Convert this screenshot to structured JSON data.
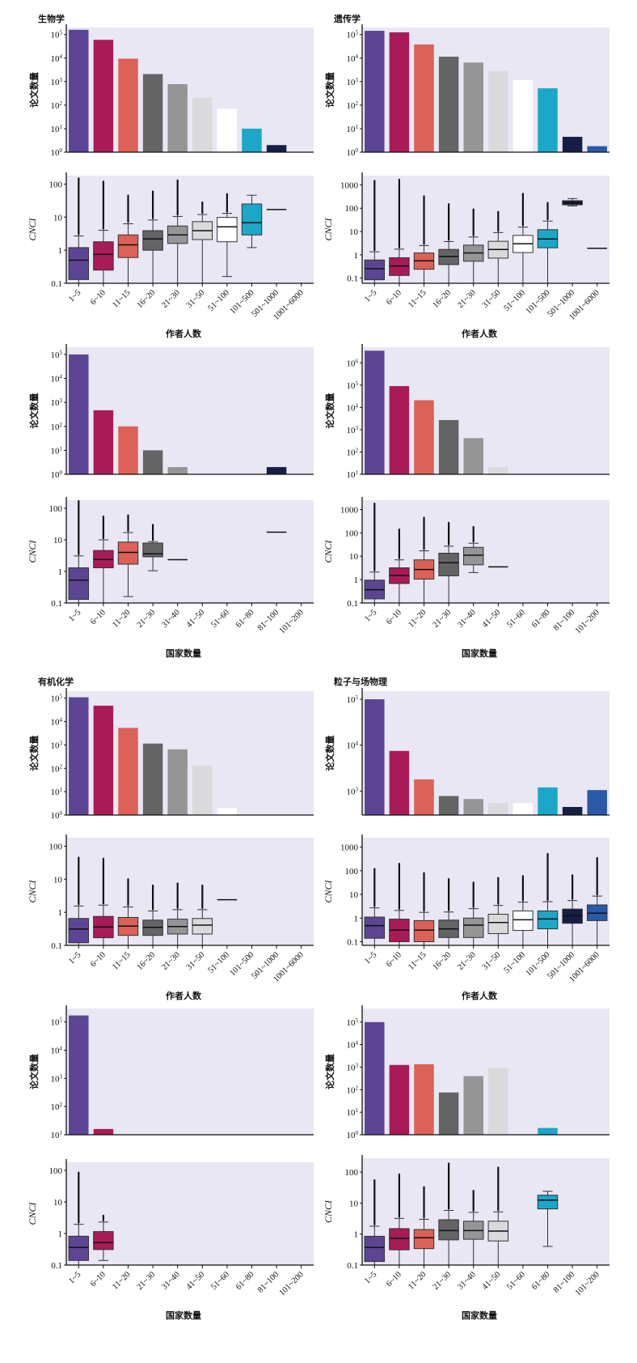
{
  "palette": [
    "#5c4595",
    "#a91b56",
    "#dc6156",
    "#646464",
    "#959595",
    "#d9dadb",
    "#ffffff",
    "#1ba7c8",
    "#151e45",
    "#2a59a8"
  ],
  "figure": {
    "background": "#e9e7f4"
  },
  "chart_data": [
    {
      "id": "biology-authors-count",
      "type": "bar",
      "title": "生物学",
      "ylabel": "论文数量",
      "yscale": "log",
      "ylim": [
        1,
        200000
      ],
      "yticks": [
        "10⁰",
        "10¹",
        "10²",
        "10³",
        "10⁴",
        "10⁵"
      ],
      "categories": [
        "1~5",
        "6~10",
        "11~15",
        "16~20",
        "21~30",
        "31~50",
        "51~100",
        "101~500",
        "501~1000",
        "1001~6000"
      ],
      "values": [
        160000,
        60000,
        9500,
        2100,
        780,
        210,
        70,
        10,
        2,
        null
      ]
    },
    {
      "id": "biology-authors-cnci",
      "type": "box",
      "ylabel": "CNCI",
      "xlabel": "作者人数",
      "yscale": "log",
      "ylim": [
        0.1,
        180
      ],
      "yticks": [
        "0.1",
        "1",
        "10",
        "100"
      ],
      "categories": [
        "1~5",
        "6~10",
        "11~15",
        "16~20",
        "21~30",
        "31~50",
        "51~100",
        "101~500",
        "501~1000",
        "1001~6000"
      ],
      "boxes": [
        {
          "q1": 0.13,
          "median": 0.5,
          "q3": 1.2,
          "wlo": 0.1,
          "whi": 2.7,
          "fmax": 150
        },
        {
          "q1": 0.25,
          "median": 0.75,
          "q3": 1.8,
          "wlo": 0.1,
          "whi": 4,
          "fmax": 120
        },
        {
          "q1": 0.6,
          "median": 1.45,
          "q3": 2.9,
          "wlo": 0.1,
          "whi": 6.3,
          "fmax": 45
        },
        {
          "q1": 1.0,
          "median": 2.2,
          "q3": 3.9,
          "wlo": 0.1,
          "whi": 8.2,
          "fmax": 60
        },
        {
          "q1": 1.6,
          "median": 2.9,
          "q3": 5.4,
          "wlo": 0.1,
          "whi": 10.5,
          "fmax": 130
        },
        {
          "q1": 2.1,
          "median": 3.9,
          "q3": 7.3,
          "wlo": 0.1,
          "whi": 12,
          "fmax": 28
        },
        {
          "q1": 1.8,
          "median": 5.1,
          "q3": 9.8,
          "wlo": 0.16,
          "whi": 13,
          "fmax": 50
        },
        {
          "q1": 2.9,
          "median": 6.8,
          "q3": 25,
          "wlo": 1.2,
          "whi": 46,
          "fmax": null
        },
        {
          "line": 17
        },
        null
      ]
    },
    {
      "id": "genetics-authors-count",
      "type": "bar",
      "title": "遗传学",
      "ylabel": "论文数量",
      "yscale": "log",
      "ylim": [
        1,
        200000
      ],
      "yticks": [
        "10⁰",
        "10¹",
        "10²",
        "10³",
        "10⁴",
        "10⁵"
      ],
      "categories": [
        "1~5",
        "6~10",
        "11~15",
        "16~20",
        "21~30",
        "31~50",
        "51~100",
        "101~500",
        "501~1000",
        "1001~6000"
      ],
      "values": [
        145000,
        125000,
        38000,
        11500,
        6500,
        2800,
        1150,
        520,
        4.5,
        1.8
      ]
    },
    {
      "id": "genetics-authors-cnci",
      "type": "box",
      "ylabel": "CNCI",
      "xlabel": "作者人数",
      "yscale": "log",
      "ylim": [
        0.06,
        2500
      ],
      "yticks": [
        "0.1",
        "1",
        "10",
        "100",
        "1000"
      ],
      "categories": [
        "1~5",
        "6~10",
        "11~15",
        "16~20",
        "21~30",
        "31~50",
        "51~100",
        "101~500",
        "501~1000",
        "1001~6000"
      ],
      "boxes": [
        {
          "q1": 0.085,
          "median": 0.25,
          "q3": 0.6,
          "wlo": 0.06,
          "whi": 1.35,
          "fmax": 1500
        },
        {
          "q1": 0.13,
          "median": 0.33,
          "q3": 0.75,
          "wlo": 0.06,
          "whi": 1.75,
          "fmax": 1700
        },
        {
          "q1": 0.24,
          "median": 0.55,
          "q3": 1.2,
          "wlo": 0.06,
          "whi": 2.5,
          "fmax": 330
        },
        {
          "q1": 0.38,
          "median": 0.85,
          "q3": 1.7,
          "wlo": 0.06,
          "whi": 3.7,
          "fmax": 150
        },
        {
          "q1": 0.53,
          "median": 1.2,
          "q3": 2.6,
          "wlo": 0.06,
          "whi": 5.8,
          "fmax": 90
        },
        {
          "q1": 0.72,
          "median": 1.7,
          "q3": 3.8,
          "wlo": 0.06,
          "whi": 9,
          "fmax": 70
        },
        {
          "q1": 1.25,
          "median": 3.0,
          "q3": 6.8,
          "wlo": 0.06,
          "whi": 15.5,
          "fmax": 420
        },
        {
          "q1": 2.0,
          "median": 4.8,
          "q3": 12,
          "wlo": 0.06,
          "whi": 28,
          "fmax": 170
        },
        {
          "q1": 140,
          "median": 170,
          "q3": 210,
          "wlo": 125,
          "whi": 260,
          "fmax": null
        },
        {
          "line": 1.9
        }
      ]
    },
    {
      "id": "biology-countries-count",
      "type": "bar",
      "ylabel": "论文数量",
      "yscale": "log",
      "ylim": [
        1,
        200000
      ],
      "yticks": [
        "10⁰",
        "10¹",
        "10²",
        "10³",
        "10⁴",
        "10⁵"
      ],
      "categories": [
        "1~5",
        "6~10",
        "11~20",
        "21~30",
        "31~40",
        "41~50",
        "51~60",
        "61~80",
        "81~100",
        "101~200"
      ],
      "values": [
        100000,
        470,
        100,
        10,
        2,
        null,
        null,
        null,
        2,
        null
      ]
    },
    {
      "id": "biology-countries-cnci",
      "type": "box",
      "ylabel": "CNCI",
      "xlabel": "国家数量",
      "yscale": "log",
      "ylim": [
        0.1,
        180
      ],
      "yticks": [
        "0.1",
        "1",
        "10",
        "100"
      ],
      "categories": [
        "1~5",
        "6~10",
        "11~20",
        "21~30",
        "31~40",
        "41~50",
        "51~60",
        "61~80",
        "81~100",
        "101~200"
      ],
      "boxes": [
        {
          "q1": 0.13,
          "median": 0.53,
          "q3": 1.3,
          "wlo": 0.1,
          "whi": 3.1,
          "fmax": 170
        },
        {
          "q1": 1.3,
          "median": 2.4,
          "q3": 4.6,
          "wlo": 0.1,
          "whi": 10,
          "fmax": 55
        },
        {
          "q1": 1.7,
          "median": 4.0,
          "q3": 8.5,
          "wlo": 0.16,
          "whi": 17,
          "fmax": 60
        },
        {
          "q1": 2.9,
          "median": 3.6,
          "q3": 7.9,
          "wlo": 1.05,
          "whi": 8.8,
          "fmax": 30
        },
        {
          "line": 2.35
        },
        null,
        null,
        null,
        {
          "line": 17.5
        },
        null
      ]
    },
    {
      "id": "genetics-countries-count",
      "type": "bar",
      "ylabel": "论文数量",
      "yscale": "log",
      "ylim": [
        10,
        5000000
      ],
      "yticks": [
        "10¹",
        "10²",
        "10³",
        "10⁴",
        "10⁵",
        "10⁶"
      ],
      "categories": [
        "1~5",
        "6~10",
        "11~20",
        "21~30",
        "31~40",
        "41~50",
        "51~60",
        "61~80",
        "81~100",
        "101~200"
      ],
      "values": [
        3500000,
        90000,
        21000,
        2700,
        420,
        21,
        null,
        null,
        null,
        null
      ]
    },
    {
      "id": "genetics-countries-cnci",
      "type": "box",
      "ylabel": "CNCI",
      "xlabel": "国家数量",
      "yscale": "log",
      "ylim": [
        0.1,
        2500
      ],
      "yticks": [
        "0.1",
        "1",
        "10",
        "100",
        "1000"
      ],
      "categories": [
        "1~5",
        "6~10",
        "11~20",
        "21~30",
        "31~40",
        "41~50",
        "51~60",
        "61~80",
        "81~100",
        "101~200"
      ],
      "boxes": [
        {
          "q1": 0.15,
          "median": 0.37,
          "q3": 0.95,
          "wlo": 0.1,
          "whi": 2.1,
          "fmax": 1800
        },
        {
          "q1": 0.68,
          "median": 1.5,
          "q3": 3.2,
          "wlo": 0.1,
          "whi": 7,
          "fmax": 140
        },
        {
          "q1": 1.05,
          "median": 2.7,
          "q3": 7,
          "wlo": 0.1,
          "whi": 17,
          "fmax": 450
        },
        {
          "q1": 1.45,
          "median": 5.3,
          "q3": 13.5,
          "wlo": 0.1,
          "whi": 27,
          "fmax": 270
        },
        {
          "q1": 4.3,
          "median": 11,
          "q3": 24,
          "wlo": 2.0,
          "whi": 36,
          "fmax": 180
        },
        {
          "line": 3.5
        },
        null,
        null,
        null,
        null
      ]
    },
    {
      "id": "organic-chemistry-authors-count",
      "type": "bar",
      "title": "有机化学",
      "ylabel": "论文数量",
      "yscale": "log",
      "ylim": [
        1,
        200000
      ],
      "yticks": [
        "10⁰",
        "10¹",
        "10²",
        "10³",
        "10⁴",
        "10⁵"
      ],
      "categories": [
        "1~5",
        "6~10",
        "11~15",
        "16~20",
        "21~30",
        "31~50",
        "51~100",
        "101~500",
        "501~1000",
        "1001~6000"
      ],
      "values": [
        110000,
        48000,
        5400,
        1150,
        650,
        130,
        2,
        null,
        null,
        null
      ]
    },
    {
      "id": "organic-chemistry-authors-cnci",
      "type": "box",
      "ylabel": "CNCI",
      "xlabel": "作者人数",
      "yscale": "log",
      "ylim": [
        0.1,
        180
      ],
      "yticks": [
        "0.1",
        "1",
        "10",
        "100"
      ],
      "categories": [
        "1~5",
        "6~10",
        "11~15",
        "16~20",
        "21~30",
        "31~50",
        "51~100",
        "101~500",
        "501~1000",
        "1001~6000"
      ],
      "boxes": [
        {
          "q1": 0.12,
          "median": 0.31,
          "q3": 0.65,
          "wlo": 0.1,
          "whi": 1.55,
          "fmax": 45
        },
        {
          "q1": 0.17,
          "median": 0.36,
          "q3": 0.75,
          "wlo": 0.1,
          "whi": 1.65,
          "fmax": 42
        },
        {
          "q1": 0.2,
          "median": 0.38,
          "q3": 0.7,
          "wlo": 0.1,
          "whi": 1.45,
          "fmax": 10
        },
        {
          "q1": 0.2,
          "median": 0.35,
          "q3": 0.58,
          "wlo": 0.1,
          "whi": 1.1,
          "fmax": 6.5
        },
        {
          "q1": 0.22,
          "median": 0.37,
          "q3": 0.62,
          "wlo": 0.1,
          "whi": 1.2,
          "fmax": 7.5
        },
        {
          "q1": 0.22,
          "median": 0.41,
          "q3": 0.65,
          "wlo": 0.1,
          "whi": 1.2,
          "fmax": 6.5
        },
        {
          "line": 2.4
        },
        null,
        null,
        null
      ]
    },
    {
      "id": "particle-physics-authors-count",
      "type": "bar",
      "title": "粒子与场物理",
      "ylabel": "论文数量",
      "yscale": "log",
      "ylim": [
        300,
        150000
      ],
      "yticks": [
        "10³",
        "10⁴",
        "10⁵"
      ],
      "categories": [
        "1~5",
        "6~10",
        "11~15",
        "16~20",
        "21~30",
        "31~50",
        "51~100",
        "101~500",
        "501~1000",
        "1001~6000"
      ],
      "values": [
        100000,
        7500,
        1800,
        780,
        670,
        550,
        550,
        1200,
        450,
        1050
      ]
    },
    {
      "id": "particle-physics-authors-cnci",
      "type": "box",
      "ylabel": "CNCI",
      "xlabel": "作者人数",
      "yscale": "log",
      "ylim": [
        0.07,
        2500
      ],
      "yticks": [
        "0.1",
        "1",
        "10",
        "100",
        "1000"
      ],
      "categories": [
        "1~5",
        "6~10",
        "11~15",
        "16~20",
        "21~30",
        "31~50",
        "51~100",
        "101~500",
        "501~1000",
        "1001~6000"
      ],
      "boxes": [
        {
          "q1": 0.14,
          "median": 0.48,
          "q3": 1.1,
          "wlo": 0.07,
          "whi": 2.7,
          "fmax": 120
        },
        {
          "q1": 0.1,
          "median": 0.31,
          "q3": 0.9,
          "wlo": 0.07,
          "whi": 2.1,
          "fmax": 200
        },
        {
          "q1": 0.1,
          "median": 0.31,
          "q3": 0.78,
          "wlo": 0.07,
          "whi": 1.75,
          "fmax": 80
        },
        {
          "q1": 0.15,
          "median": 0.35,
          "q3": 0.82,
          "wlo": 0.07,
          "whi": 1.8,
          "fmax": 45
        },
        {
          "q1": 0.15,
          "median": 0.5,
          "q3": 1.0,
          "wlo": 0.07,
          "whi": 2.5,
          "fmax": 32
        },
        {
          "q1": 0.22,
          "median": 0.65,
          "q3": 1.45,
          "wlo": 0.07,
          "whi": 3.4,
          "fmax": 50
        },
        {
          "q1": 0.3,
          "median": 0.85,
          "q3": 2.0,
          "wlo": 0.07,
          "whi": 4.7,
          "fmax": 60
        },
        {
          "q1": 0.35,
          "median": 0.92,
          "q3": 2.0,
          "wlo": 0.07,
          "whi": 4.9,
          "fmax": 520
        },
        {
          "q1": 0.6,
          "median": 1.25,
          "q3": 2.4,
          "wlo": 0.07,
          "whi": 5.5,
          "fmax": 65
        },
        {
          "q1": 0.78,
          "median": 1.6,
          "q3": 3.6,
          "wlo": 0.07,
          "whi": 8.5,
          "fmax": 350
        }
      ]
    },
    {
      "id": "organic-chemistry-countries-count",
      "type": "bar",
      "ylabel": "论文数量",
      "yscale": "log",
      "ylim": [
        10,
        300000
      ],
      "yticks": [
        "10¹",
        "10²",
        "10³",
        "10⁴",
        "10⁵"
      ],
      "categories": [
        "1~5",
        "6~10",
        "11~20",
        "21~30",
        "31~40",
        "41~50",
        "51~60",
        "61~80",
        "81~100",
        "101~200"
      ],
      "values": [
        170000,
        16,
        null,
        null,
        null,
        null,
        null,
        null,
        null,
        null
      ]
    },
    {
      "id": "organic-chemistry-countries-cnci",
      "type": "box",
      "ylabel": "CNCI",
      "xlabel": "国家数量",
      "yscale": "log",
      "ylim": [
        0.1,
        180
      ],
      "yticks": [
        "0.1",
        "1",
        "10",
        "100"
      ],
      "categories": [
        "1~5",
        "6~10",
        "11~20",
        "21~30",
        "31~40",
        "41~50",
        "51~60",
        "61~80",
        "81~100",
        "101~200"
      ],
      "boxes": [
        {
          "q1": 0.14,
          "median": 0.36,
          "q3": 0.82,
          "wlo": 0.1,
          "whi": 1.95,
          "fmax": 85
        },
        {
          "q1": 0.31,
          "median": 0.52,
          "q3": 1.15,
          "wlo": 0.14,
          "whi": 2.3,
          "fmax": 3.7
        },
        null,
        null,
        null,
        null,
        null,
        null,
        null,
        null
      ]
    },
    {
      "id": "particle-physics-countries-count",
      "type": "bar",
      "ylabel": "论文数量",
      "yscale": "log",
      "ylim": [
        1,
        400000
      ],
      "yticks": [
        "10⁰",
        "10¹",
        "10²",
        "10³",
        "10⁴",
        "10⁵"
      ],
      "categories": [
        "1~5",
        "6~10",
        "11~20",
        "21~30",
        "31~40",
        "41~50",
        "51~60",
        "61~80",
        "81~100",
        "101~200"
      ],
      "values": [
        100000,
        1250,
        1350,
        75,
        400,
        900,
        null,
        2,
        null,
        null
      ]
    },
    {
      "id": "particle-physics-countries-cnci",
      "type": "box",
      "ylabel": "CNCI",
      "xlabel": "国家数量",
      "yscale": "log",
      "ylim": [
        0.1,
        280
      ],
      "yticks": [
        "0.1",
        "1",
        "10",
        "100"
      ],
      "categories": [
        "1~5",
        "6~10",
        "11~20",
        "21~30",
        "31~40",
        "41~50",
        "51~60",
        "61~80",
        "81~100",
        "101~200"
      ],
      "boxes": [
        {
          "q1": 0.13,
          "median": 0.37,
          "q3": 0.85,
          "wlo": 0.1,
          "whi": 1.8,
          "fmax": 55
        },
        {
          "q1": 0.31,
          "median": 0.72,
          "q3": 1.5,
          "wlo": 0.1,
          "whi": 3.2,
          "fmax": 85
        },
        {
          "q1": 0.34,
          "median": 0.76,
          "q3": 1.4,
          "wlo": 0.1,
          "whi": 3.0,
          "fmax": 33
        },
        {
          "q1": 0.65,
          "median": 1.3,
          "q3": 2.9,
          "wlo": 0.1,
          "whi": 5.8,
          "fmax": 190
        },
        {
          "q1": 0.68,
          "median": 1.3,
          "q3": 2.6,
          "wlo": 0.1,
          "whi": 5.0,
          "fmax": 25
        },
        {
          "q1": 0.6,
          "median": 1.25,
          "q3": 2.6,
          "wlo": 0.1,
          "whi": 5.2,
          "fmax": 140
        },
        null,
        {
          "q1": 6.5,
          "median": 12.5,
          "q3": 18,
          "wlo": 0.4,
          "whi": 24,
          "fmax": null
        },
        null,
        null
      ]
    }
  ]
}
